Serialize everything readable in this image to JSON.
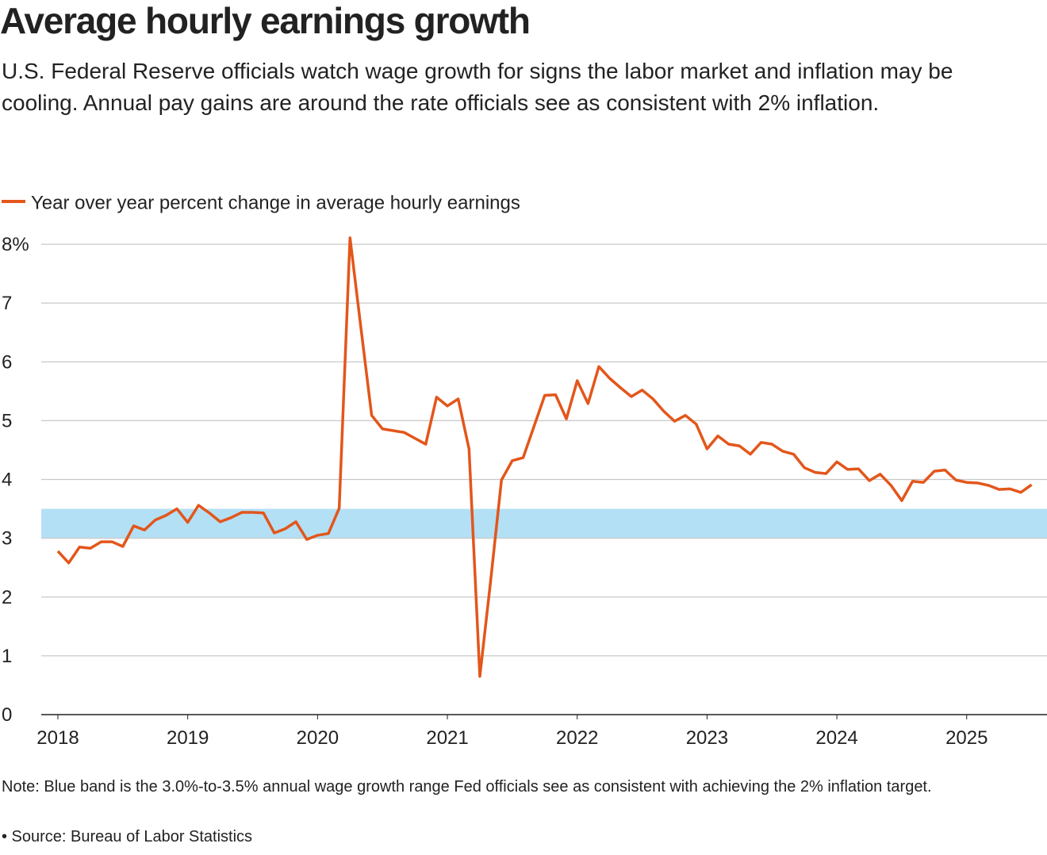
{
  "chart_data": {
    "type": "line",
    "title": "Average hourly earnings growth",
    "subtitle": "U.S. Federal Reserve officials watch wage growth for signs the labor market and inflation may be cooling. Annual pay gains are around the rate officials see as consistent with 2% inflation.",
    "note": "Note: Blue band is the 3.0%-to-3.5% annual wage growth range Fed officials see as consistent with achieving the 2% inflation target.",
    "source": "• Source: Bureau of Labor Statistics",
    "categories": [
      "2018",
      null,
      null,
      null,
      null,
      null,
      null,
      null,
      null,
      null,
      null,
      null,
      "2019",
      null,
      null,
      null,
      null,
      null,
      null,
      null,
      null,
      null,
      null,
      null,
      "2020",
      null,
      null,
      null,
      null,
      null,
      null,
      null,
      null,
      null,
      null,
      null,
      "2021",
      null,
      null,
      null,
      null,
      null,
      null,
      null,
      null,
      null,
      null,
      null,
      "2022",
      null,
      null,
      null,
      null,
      null,
      null,
      null,
      null,
      null,
      null,
      null,
      "2023",
      null,
      null,
      null,
      null,
      null,
      null,
      null,
      null,
      null,
      null,
      null,
      "2024",
      null,
      null,
      null,
      null,
      null,
      null,
      null,
      null,
      null,
      null,
      null,
      "2025",
      null,
      null,
      null,
      null,
      null,
      null
    ],
    "series": [
      {
        "name": "Year over year percent change in average hourly earnings",
        "color": "#e3561b",
        "values": [
          2.78,
          2.58,
          2.85,
          2.83,
          2.94,
          2.94,
          2.86,
          3.21,
          3.14,
          3.31,
          3.39,
          3.5,
          3.27,
          3.56,
          3.43,
          3.28,
          3.35,
          3.44,
          3.44,
          3.43,
          3.09,
          3.16,
          3.28,
          2.98,
          3.05,
          3.08,
          3.51,
          8.11,
          6.59,
          5.09,
          4.86,
          4.83,
          4.8,
          4.7,
          4.6,
          5.4,
          5.25,
          5.37,
          4.52,
          0.65,
          2.28,
          3.99,
          4.32,
          4.37,
          4.9,
          5.43,
          5.44,
          5.03,
          5.68,
          5.29,
          5.92,
          5.72,
          5.56,
          5.41,
          5.52,
          5.37,
          5.16,
          4.99,
          5.09,
          4.94,
          4.52,
          4.74,
          4.6,
          4.57,
          4.43,
          4.63,
          4.6,
          4.48,
          4.43,
          4.2,
          4.12,
          4.1,
          4.3,
          4.17,
          4.18,
          3.98,
          4.09,
          3.9,
          3.64,
          3.97,
          3.95,
          4.14,
          4.16,
          3.99,
          3.95,
          3.94,
          3.9,
          3.83,
          3.84,
          3.78,
          3.91
        ]
      }
    ],
    "band": {
      "range": [
        3,
        3.5
      ],
      "color": "#b3e0f5"
    },
    "ylim": [
      0,
      8
    ],
    "yticks": [
      0,
      1,
      2,
      3,
      4,
      5,
      6,
      7,
      {
        "value": 8,
        "label": "8%"
      }
    ],
    "grid": true
  }
}
